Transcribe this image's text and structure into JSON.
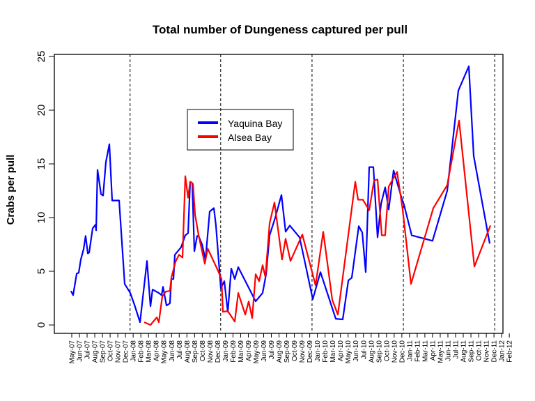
{
  "chart_data": {
    "type": "line",
    "title": "Total number of Dungeness captured per pull",
    "xlabel": "",
    "ylabel": "Crabs per pull",
    "ylim": [
      0,
      25
    ],
    "yticks": [
      "0",
      "5",
      "10",
      "15",
      "20",
      "25"
    ],
    "x_unit": "months since May-07",
    "xlim": [
      0,
      57
    ],
    "x_tick_labels": [
      "May-07",
      "Jun-07",
      "Jul-07",
      "Aug-07",
      "Sep-07",
      "Oct-07",
      "Nov-07",
      "Dec-07",
      "Jan-08",
      "Feb-08",
      "Mar-08",
      "Apr-08",
      "May-08",
      "Jun-08",
      "Jul-08",
      "Aug-08",
      "Sep-08",
      "Oct-08",
      "Nov-08",
      "Dec-08",
      "Jan-09",
      "Feb-09",
      "Mar-09",
      "Apr-09",
      "May-09",
      "Jun-09",
      "Jul-09",
      "Aug-09",
      "Sep-09",
      "Oct-09",
      "Nov-09",
      "Dec-09",
      "Jan-10",
      "Feb-10",
      "Mar-10",
      "Apr-10",
      "May-10",
      "Jun-10",
      "Jul-10",
      "Aug-10",
      "Sep-10",
      "Oct-10",
      "Nov-10",
      "Dec-10",
      "Jan-11",
      "Feb-11",
      "Mar-11",
      "Apr-11",
      "May-11",
      "Jun-11",
      "Jul-11",
      "Aug-11",
      "Sep-11",
      "Oct-11",
      "Nov-11",
      "Dec-11",
      "Jan-12",
      "Feb-12"
    ],
    "vertical_dashed_lines": [
      7.6,
      19.4,
      31.3,
      43.2,
      55.1
    ],
    "grid": false,
    "legend_position": "top-center",
    "series": [
      {
        "name": "Yaquina Bay",
        "color": "#0000ff",
        "points": [
          [
            -0.1,
            3.17
          ],
          [
            0.18,
            2.78
          ],
          [
            0.64,
            4.79
          ],
          [
            0.91,
            4.86
          ],
          [
            1.18,
            6.09
          ],
          [
            1.54,
            7.06
          ],
          [
            1.81,
            8.29
          ],
          [
            2.09,
            6.67
          ],
          [
            2.27,
            6.74
          ],
          [
            2.72,
            9.0
          ],
          [
            3.09,
            9.33
          ],
          [
            3.18,
            8.81
          ],
          [
            3.36,
            14.44
          ],
          [
            3.81,
            12.18
          ],
          [
            4.08,
            12.05
          ],
          [
            4.45,
            15.16
          ],
          [
            4.9,
            16.84
          ],
          [
            5.26,
            11.59
          ],
          [
            6.17,
            11.59
          ],
          [
            6.9,
            3.82
          ],
          [
            7.62,
            2.98
          ],
          [
            8.17,
            1.88
          ],
          [
            8.89,
            0.26
          ],
          [
            9.8,
            5.96
          ],
          [
            10.25,
            1.75
          ],
          [
            10.53,
            3.3
          ],
          [
            11.34,
            2.98
          ],
          [
            11.71,
            2.78
          ],
          [
            11.89,
            3.56
          ],
          [
            12.34,
            1.81
          ],
          [
            12.79,
            2.01
          ],
          [
            12.98,
            4.27
          ],
          [
            13.25,
            4.27
          ],
          [
            13.43,
            6.54
          ],
          [
            14.25,
            7.25
          ],
          [
            14.79,
            8.35
          ],
          [
            15.15,
            8.55
          ],
          [
            15.43,
            13.34
          ],
          [
            15.7,
            13.21
          ],
          [
            15.97,
            6.87
          ],
          [
            16.33,
            8.29
          ],
          [
            16.52,
            8.29
          ],
          [
            16.97,
            7.51
          ],
          [
            17.42,
            6.09
          ],
          [
            17.97,
            10.56
          ],
          [
            18.51,
            10.88
          ],
          [
            18.78,
            9.26
          ],
          [
            19.42,
            3.43
          ],
          [
            19.87,
            4.08
          ],
          [
            20.33,
            1.23
          ],
          [
            20.78,
            5.25
          ],
          [
            21.23,
            4.27
          ],
          [
            21.69,
            5.38
          ],
          [
            23.96,
            2.2
          ],
          [
            24.86,
            2.98
          ],
          [
            25.32,
            4.73
          ],
          [
            25.77,
            8.35
          ],
          [
            26.5,
            9.97
          ],
          [
            27.31,
            12.11
          ],
          [
            27.86,
            8.68
          ],
          [
            28.4,
            9.26
          ],
          [
            29.67,
            8.16
          ],
          [
            30.4,
            5.76
          ],
          [
            31.4,
            2.4
          ],
          [
            32.4,
            4.92
          ],
          [
            34.39,
            0.58
          ],
          [
            35.3,
            0.52
          ],
          [
            36.03,
            4.15
          ],
          [
            36.48,
            4.4
          ],
          [
            37.39,
            9.2
          ],
          [
            37.84,
            8.61
          ],
          [
            38.29,
            4.92
          ],
          [
            38.75,
            14.7
          ],
          [
            39.29,
            14.7
          ],
          [
            39.84,
            8.16
          ],
          [
            40.29,
            11.27
          ],
          [
            40.83,
            12.82
          ],
          [
            41.29,
            10.75
          ],
          [
            41.92,
            14.38
          ],
          [
            43.01,
            11.72
          ],
          [
            43.28,
            11.2
          ],
          [
            44.28,
            8.35
          ],
          [
            47.0,
            7.84
          ],
          [
            48.91,
            12.5
          ],
          [
            50.36,
            21.83
          ],
          [
            51.72,
            24.09
          ],
          [
            52.36,
            15.74
          ],
          [
            54.45,
            7.58
          ]
        ]
      },
      {
        "name": "Alsea Bay",
        "color": "#ff0000",
        "points": [
          [
            9.44,
            0.26
          ],
          [
            10.25,
            0.0
          ],
          [
            11.07,
            0.71
          ],
          [
            11.34,
            0.26
          ],
          [
            11.8,
            2.66
          ],
          [
            12.25,
            3.11
          ],
          [
            12.79,
            3.17
          ],
          [
            12.98,
            4.4
          ],
          [
            13.52,
            5.89
          ],
          [
            13.97,
            6.54
          ],
          [
            14.43,
            6.28
          ],
          [
            14.79,
            13.86
          ],
          [
            15.15,
            11.85
          ],
          [
            15.43,
            13.34
          ],
          [
            15.79,
            13.15
          ],
          [
            16.06,
            10.3
          ],
          [
            16.52,
            8.35
          ],
          [
            17.33,
            5.7
          ],
          [
            17.7,
            7.12
          ],
          [
            19.06,
            5.05
          ],
          [
            19.51,
            4.27
          ],
          [
            19.69,
            1.23
          ],
          [
            20.33,
            1.3
          ],
          [
            21.23,
            0.32
          ],
          [
            21.69,
            2.98
          ],
          [
            22.6,
            0.97
          ],
          [
            23.05,
            2.2
          ],
          [
            23.5,
            0.65
          ],
          [
            23.96,
            4.73
          ],
          [
            24.41,
            4.08
          ],
          [
            24.86,
            5.57
          ],
          [
            25.23,
            4.47
          ],
          [
            25.77,
            9.46
          ],
          [
            26.41,
            11.4
          ],
          [
            27.4,
            6.09
          ],
          [
            27.86,
            8.03
          ],
          [
            28.49,
            5.96
          ],
          [
            30.04,
            8.42
          ],
          [
            31.76,
            3.69
          ],
          [
            32.76,
            8.68
          ],
          [
            33.94,
            2.33
          ],
          [
            34.66,
            0.97
          ],
          [
            36.93,
            13.34
          ],
          [
            37.3,
            11.66
          ],
          [
            37.93,
            11.66
          ],
          [
            38.75,
            10.69
          ],
          [
            39.38,
            13.47
          ],
          [
            39.84,
            13.54
          ],
          [
            40.38,
            8.35
          ],
          [
            40.83,
            8.35
          ],
          [
            41.29,
            12.89
          ],
          [
            42.38,
            14.25
          ],
          [
            43.1,
            10.75
          ],
          [
            44.19,
            3.82
          ],
          [
            47.1,
            10.88
          ],
          [
            48.91,
            13.02
          ],
          [
            50.45,
            19.04
          ],
          [
            52.45,
            5.44
          ],
          [
            54.54,
            9.26
          ]
        ]
      }
    ]
  }
}
